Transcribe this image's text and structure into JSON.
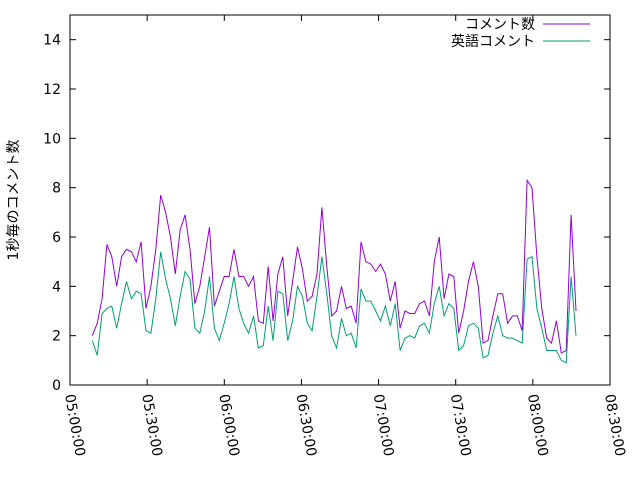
{
  "chart_data": {
    "type": "line",
    "title": "",
    "xlabel": "",
    "ylabel": "1秒毎のコメント数",
    "ylim": [
      0,
      15
    ],
    "yticks": [
      0,
      2,
      4,
      6,
      8,
      10,
      12,
      14
    ],
    "xlim": [
      "05:00:00",
      "08:30:00"
    ],
    "xtick_labels": [
      "05:00:00",
      "05:30:00",
      "06:00:00",
      "06:30:00",
      "07:00:00",
      "07:30:00",
      "08:00:00",
      "08:30:00"
    ],
    "grid": false,
    "legend_position": "top-right",
    "x": [
      "05:08:40",
      "05:10:34",
      "05:12:28",
      "05:14:22",
      "05:16:16",
      "05:18:10",
      "05:20:04",
      "05:21:58",
      "05:23:52",
      "05:25:46",
      "05:27:40",
      "05:29:34",
      "05:31:28",
      "05:33:22",
      "05:35:16",
      "05:37:10",
      "05:39:04",
      "05:40:58",
      "05:42:52",
      "05:44:46",
      "05:46:40",
      "05:48:34",
      "05:50:28",
      "05:52:22",
      "05:54:16",
      "05:56:10",
      "05:58:04",
      "05:59:58",
      "06:01:52",
      "06:03:46",
      "06:05:40",
      "06:07:34",
      "06:09:28",
      "06:11:22",
      "06:13:16",
      "06:15:10",
      "06:17:04",
      "06:18:58",
      "06:20:52",
      "06:22:46",
      "06:24:40",
      "06:26:34",
      "06:28:28",
      "06:30:22",
      "06:32:16",
      "06:34:10",
      "06:36:04",
      "06:37:58",
      "06:39:52",
      "06:41:46",
      "06:43:40",
      "06:45:34",
      "06:47:28",
      "06:49:22",
      "06:51:16",
      "06:53:10",
      "06:55:04",
      "06:56:58",
      "06:58:52",
      "07:00:46",
      "07:02:40",
      "07:04:34",
      "07:06:28",
      "07:08:22",
      "07:10:16",
      "07:12:10",
      "07:14:04",
      "07:15:58",
      "07:17:52",
      "07:19:46",
      "07:21:40",
      "07:23:34",
      "07:25:28",
      "07:27:22",
      "07:29:16",
      "07:31:10",
      "07:33:04",
      "07:34:58",
      "07:36:52",
      "07:38:46",
      "07:40:40",
      "07:42:34",
      "07:44:28",
      "07:46:22",
      "07:48:16",
      "07:50:10",
      "07:52:04",
      "07:53:58",
      "07:55:52",
      "07:57:46",
      "07:59:40",
      "08:01:34",
      "08:03:28",
      "08:05:22",
      "08:07:16",
      "08:09:10",
      "08:11:04",
      "08:12:58",
      "08:14:52",
      "08:16:46"
    ],
    "series": [
      {
        "name": "コメント数",
        "color": "#9400d3",
        "values": [
          2.0,
          2.5,
          3.5,
          5.7,
          5.2,
          4.0,
          5.2,
          5.5,
          5.4,
          5.0,
          5.8,
          3.1,
          4.0,
          5.5,
          7.7,
          7.0,
          6.0,
          4.5,
          6.3,
          6.9,
          5.5,
          3.3,
          4.0,
          5.2,
          6.4,
          3.2,
          3.8,
          4.4,
          4.4,
          5.5,
          4.4,
          4.4,
          4.0,
          4.4,
          2.6,
          2.5,
          4.8,
          2.6,
          4.5,
          5.2,
          2.8,
          4.2,
          5.6,
          4.7,
          3.4,
          3.6,
          4.5,
          7.2,
          4.8,
          2.8,
          3.0,
          4.0,
          3.1,
          3.2,
          2.5,
          5.8,
          5.0,
          4.9,
          4.6,
          4.9,
          4.5,
          3.4,
          4.2,
          2.3,
          3.0,
          2.9,
          2.9,
          3.3,
          3.4,
          2.8,
          5.0,
          6.0,
          3.5,
          4.5,
          4.4,
          2.1,
          3.0,
          4.2,
          5.0,
          4.0,
          1.7,
          1.8,
          2.8,
          3.7,
          3.7,
          2.5,
          2.8,
          2.8,
          2.2,
          8.3,
          8.0,
          5.2,
          3.1,
          1.9,
          1.7,
          2.6,
          1.3,
          1.4,
          6.9,
          3.0
        ]
      },
      {
        "name": "英語コメント",
        "color": "#009e73",
        "values": [
          1.8,
          1.2,
          2.9,
          3.1,
          3.2,
          2.3,
          3.3,
          4.2,
          3.5,
          3.8,
          3.7,
          2.2,
          2.1,
          3.5,
          5.4,
          4.3,
          3.5,
          2.4,
          3.6,
          4.6,
          4.3,
          2.3,
          2.1,
          3.0,
          4.4,
          2.3,
          1.8,
          2.5,
          3.3,
          4.4,
          3.1,
          2.5,
          2.1,
          2.8,
          1.5,
          1.6,
          3.2,
          1.8,
          3.8,
          3.7,
          1.8,
          2.6,
          4.0,
          3.6,
          2.5,
          2.2,
          3.6,
          5.2,
          3.7,
          2.0,
          1.5,
          2.7,
          2.0,
          2.1,
          1.5,
          3.9,
          3.4,
          3.4,
          3.0,
          2.6,
          3.2,
          2.4,
          3.3,
          1.4,
          1.9,
          2.0,
          1.9,
          2.4,
          2.5,
          2.1,
          3.3,
          4.0,
          2.8,
          3.3,
          3.1,
          1.4,
          1.6,
          2.4,
          2.5,
          2.3,
          1.1,
          1.2,
          2.1,
          2.8,
          2.0,
          1.9,
          1.9,
          1.8,
          1.7,
          5.1,
          5.2,
          3.1,
          2.3,
          1.4,
          1.4,
          1.4,
          1.0,
          0.9,
          4.4,
          2.0
        ]
      }
    ]
  }
}
